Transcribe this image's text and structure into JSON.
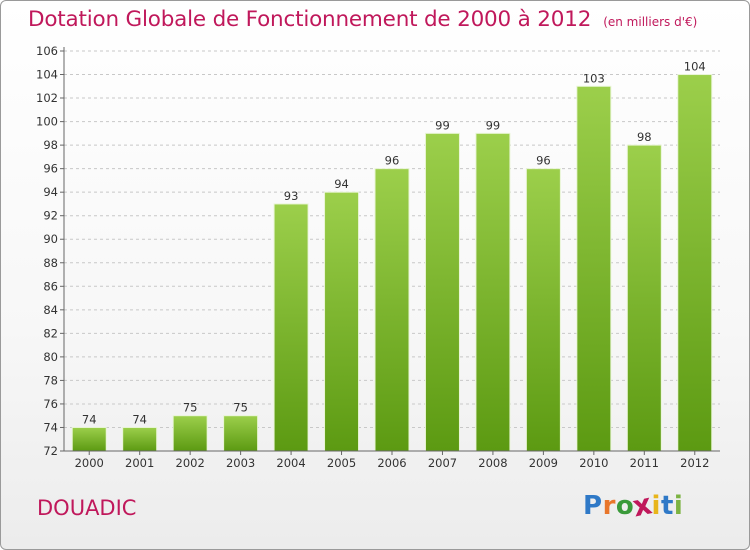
{
  "header": {
    "title": "Dotation Globale de Fonctionnement de 2000 à 2012",
    "unit_note": "(en milliers d'€)"
  },
  "footer": {
    "commune": "DOUADIC",
    "brand": "Proxiti",
    "brand_colors": [
      "#2f79c7",
      "#e8762b",
      "#3a9a3a",
      "#c0185b",
      "#e8b51a",
      "#2f79c7",
      "#7cb342"
    ]
  },
  "colors": {
    "accent": "#c0185b",
    "bar_top": "#9ccf4b",
    "bar_bottom": "#5c9a12",
    "grid": "#c8c8c8",
    "axis_text": "#333333"
  },
  "chart_data": {
    "type": "bar",
    "title": "Dotation Globale de Fonctionnement de 2000 à 2012",
    "subtitle": "(en milliers d'€)",
    "categories": [
      "2000",
      "2001",
      "2002",
      "2003",
      "2004",
      "2005",
      "2006",
      "2007",
      "2008",
      "2009",
      "2010",
      "2011",
      "2012"
    ],
    "values": [
      74,
      74,
      75,
      75,
      93,
      94,
      96,
      99,
      99,
      96,
      103,
      98,
      104
    ],
    "data_labels": [
      "74",
      "74",
      "75",
      "75",
      "93",
      "94",
      "96",
      "99",
      "99",
      "96",
      "103",
      "98",
      "104"
    ],
    "ylim": [
      72,
      106
    ],
    "yticks": [
      72,
      74,
      76,
      78,
      80,
      82,
      84,
      86,
      88,
      90,
      92,
      94,
      96,
      98,
      100,
      102,
      104,
      106
    ],
    "grid": true,
    "legend": "none"
  }
}
